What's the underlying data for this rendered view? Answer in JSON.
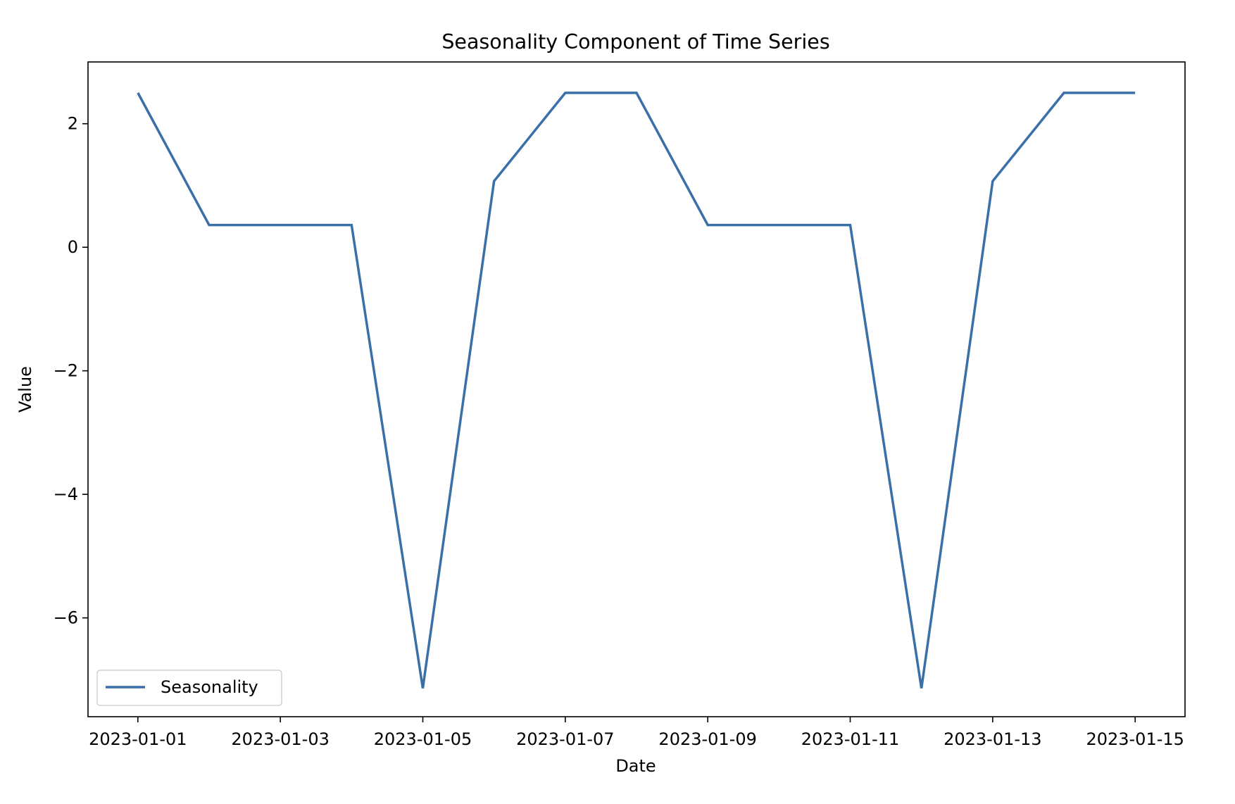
{
  "chart_data": {
    "type": "line",
    "title": "Seasonality Component of Time Series",
    "xlabel": "Date",
    "ylabel": "Value",
    "x_tick_labels": [
      "2023-01-01",
      "2023-01-03",
      "2023-01-05",
      "2023-01-07",
      "2023-01-09",
      "2023-01-11",
      "2023-01-13",
      "2023-01-15"
    ],
    "y_tick_labels": [
      "−6",
      "−4",
      "−2",
      "0",
      "2"
    ],
    "y_ticks": [
      -6,
      -4,
      -2,
      0,
      2
    ],
    "xlim": [
      "2022-12-31T07:12",
      "2023-01-15T16:48"
    ],
    "ylim": [
      -7.6,
      3.0
    ],
    "grid": false,
    "legend": {
      "position": "lower-left"
    },
    "series": [
      {
        "name": "Seasonality",
        "color": "#3a6fa8",
        "x": [
          "2023-01-01",
          "2023-01-02",
          "2023-01-03",
          "2023-01-04",
          "2023-01-05",
          "2023-01-06",
          "2023-01-07",
          "2023-01-08",
          "2023-01-09",
          "2023-01-10",
          "2023-01-11",
          "2023-01-12",
          "2023-01-13",
          "2023-01-14",
          "2023-01-15"
        ],
        "values": [
          2.5,
          0.36,
          0.36,
          0.36,
          -7.14,
          1.07,
          2.5,
          2.5,
          0.36,
          0.36,
          0.36,
          -7.14,
          1.07,
          2.5,
          2.5
        ]
      }
    ]
  }
}
